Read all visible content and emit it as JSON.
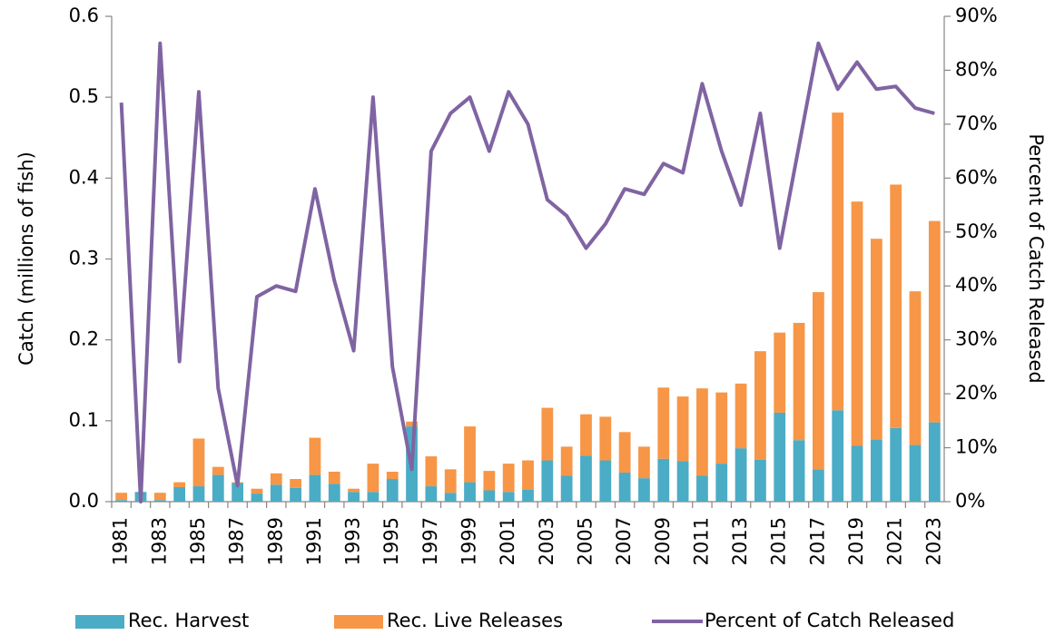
{
  "chart_data": {
    "type": "combo",
    "categories": [
      "1981",
      null,
      "1983",
      null,
      "1985",
      null,
      "1987",
      null,
      "1989",
      null,
      "1991",
      null,
      "1993",
      null,
      "1995",
      null,
      "1997",
      null,
      "1999",
      null,
      "2001",
      null,
      "2003",
      null,
      "2005",
      null,
      "2007",
      null,
      "2009",
      null,
      "2011",
      null,
      "2013",
      null,
      "2015",
      null,
      "2017",
      null,
      "2019",
      null,
      "2021",
      null,
      "2023"
    ],
    "series": [
      {
        "name": "Rec. Harvest",
        "color": "#4bacc6",
        "values": [
          0.002,
          0.012,
          0.002,
          0.018,
          0.019,
          0.033,
          0.023,
          0.01,
          0.021,
          0.017,
          0.033,
          0.022,
          0.012,
          0.012,
          0.028,
          0.093,
          0.019,
          0.011,
          0.024,
          0.014,
          0.012,
          0.015,
          0.051,
          0.032,
          0.057,
          0.051,
          0.036,
          0.029,
          0.053,
          0.05,
          0.032,
          0.047,
          0.066,
          0.052,
          0.11,
          0.076,
          0.04,
          0.113,
          0.069,
          0.077,
          0.091,
          0.07,
          0.098
        ]
      },
      {
        "name": "Rec. Live Releases",
        "color": "#f79646",
        "values": [
          0.009,
          0.0,
          0.009,
          0.006,
          0.059,
          0.01,
          0.001,
          0.006,
          0.014,
          0.011,
          0.046,
          0.015,
          0.004,
          0.035,
          0.009,
          0.006,
          0.037,
          0.029,
          0.069,
          0.024,
          0.035,
          0.036,
          0.065,
          0.036,
          0.051,
          0.054,
          0.05,
          0.039,
          0.088,
          0.08,
          0.108,
          0.088,
          0.08,
          0.134,
          0.099,
          0.145,
          0.219,
          0.368,
          0.302,
          0.248,
          0.301,
          0.19,
          0.249
        ]
      },
      {
        "name": "Percent of Catch Released",
        "color": "#8064a2",
        "axis": "y2",
        "values": [
          74,
          0,
          85,
          26,
          76,
          21,
          3,
          38,
          40,
          39,
          58,
          41,
          28,
          75,
          25,
          6,
          65,
          72,
          75,
          65,
          76,
          70,
          56,
          53,
          47,
          51.5,
          58,
          57,
          62.7,
          61,
          77.5,
          65,
          55,
          72,
          47,
          66,
          85,
          76.5,
          81.5,
          76.5,
          77,
          73,
          72
        ]
      }
    ],
    "y_label": "Catch (millions of fish)",
    "y2_label": "Percent of Catch Released",
    "ylim": [
      0,
      0.6
    ],
    "yticks": [
      {
        "value": 0,
        "label": "0.0"
      },
      0.1,
      0.2,
      0.3,
      0.4,
      0.5,
      0.6
    ],
    "y2lim": [
      0,
      90
    ],
    "y2ticks": [
      {
        "value": 0,
        "label": "0%"
      },
      {
        "value": 10,
        "label": "10%"
      },
      {
        "value": 20,
        "label": "20%"
      },
      {
        "value": 30,
        "label": "30%"
      },
      {
        "value": 40,
        "label": "40%"
      },
      {
        "value": 50,
        "label": "50%"
      },
      {
        "value": 60,
        "label": "60%"
      },
      {
        "value": 70,
        "label": "70%"
      },
      {
        "value": 80,
        "label": "80%"
      },
      {
        "value": 90,
        "label": "90%"
      }
    ],
    "legend": "bottom"
  }
}
